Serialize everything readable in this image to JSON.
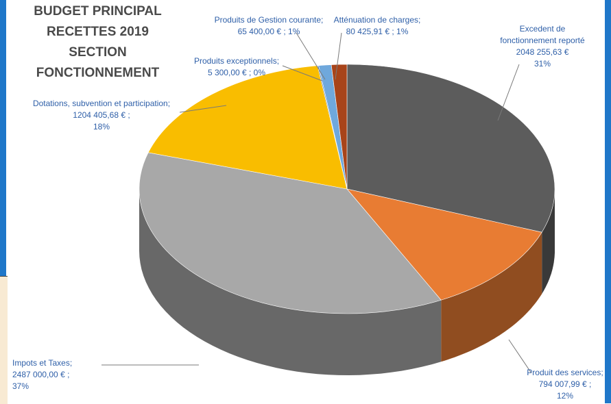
{
  "title_lines": [
    "BUDGET PRINCIPAL",
    "RECETTES 2019",
    "SECTION FONCTIONNEMENT"
  ],
  "colors": {
    "label_text": "#2e5fa8",
    "title_text": "#4a4a4a",
    "frame": "#1f77c9"
  },
  "chart_data": {
    "type": "pie",
    "title": "BUDGET PRINCIPAL RECETTES 2019 SECTION FONCTIONNEMENT",
    "currency": "€",
    "slices": [
      {
        "name": "Excedent de fonctionnement reporté",
        "value": 2048255.63,
        "percent": 31,
        "color": "#5c5c5c",
        "label_lines": [
          "Excedent de",
          "fonctionnement reporté",
          "2048 255,63 €",
          "31%"
        ]
      },
      {
        "name": "Produit des services",
        "value": 794007.99,
        "percent": 12,
        "color": "#e87c33",
        "label_lines": [
          "Produit des services;",
          "794 007,99 € ;",
          "12%"
        ]
      },
      {
        "name": "Impots et Taxes",
        "value": 2487000.0,
        "percent": 37,
        "color": "#a8a8a8",
        "label_lines": [
          "Impots et Taxes;",
          "2487 000,00 € ;",
          "37%"
        ]
      },
      {
        "name": "Dotations, subvention et participation",
        "value": 1204405.68,
        "percent": 18,
        "color": "#f9bd00",
        "label_lines": [
          "Dotations, subvention et participation;",
          "1204 405,68 € ;",
          "18%"
        ]
      },
      {
        "name": "Produits exceptionnels",
        "value": 5300.0,
        "percent": 0,
        "color": "#3d6fb8",
        "label_lines": [
          "Produits exceptionnels;",
          "5 300,00 € ; 0%"
        ]
      },
      {
        "name": "Produits de Gestion courante",
        "value": 65400.0,
        "percent": 1,
        "color": "#6fa8dc",
        "label_lines": [
          "Produits de Gestion courante;",
          "65 400,00 € ; 1%"
        ]
      },
      {
        "name": "Atténuation de charges",
        "value": 80425.91,
        "percent": 1,
        "color": "#a8441a",
        "label_lines": [
          "Atténuation de charges;",
          "80 425,91 € ; 1%"
        ]
      }
    ]
  }
}
